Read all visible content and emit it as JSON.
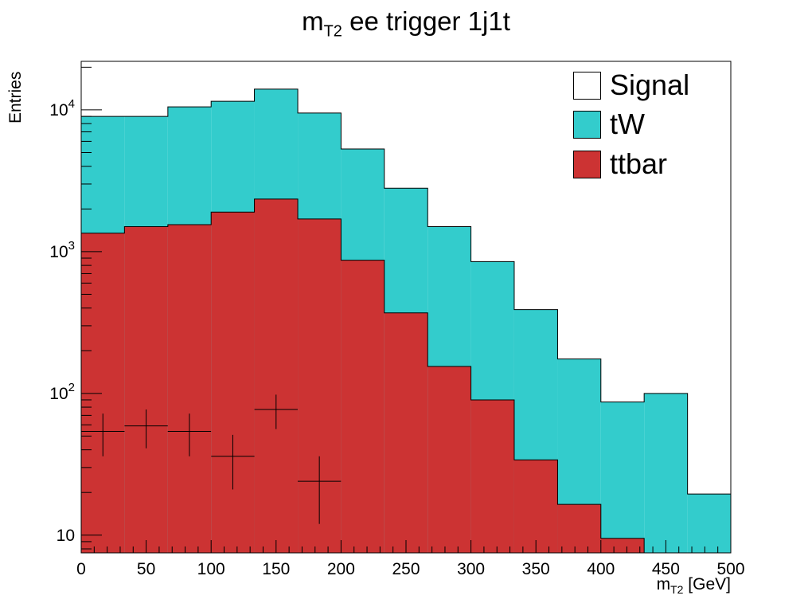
{
  "title": {
    "main": "m",
    "sub": "T2",
    "rest": " ee trigger 1j1t"
  },
  "ylabel": "Entries",
  "xlabel": {
    "main": "m",
    "sub": "T2",
    "rest": " [GeV]"
  },
  "colors": {
    "tW": "#33cccc",
    "ttbar": "#cc3333",
    "signal": "#ffffff"
  },
  "legend": [
    {
      "label": "Signal",
      "color": "#ffffff"
    },
    {
      "label": "tW",
      "color": "#33cccc"
    },
    {
      "label": "ttbar",
      "color": "#cc3333"
    }
  ],
  "chart_data": {
    "type": "bar",
    "stacked": true,
    "yscale": "log",
    "xlim": [
      0,
      500
    ],
    "ylim": [
      7.5,
      22000
    ],
    "bin_edges": [
      0,
      33.3,
      66.7,
      100,
      133.3,
      166.7,
      200,
      233.3,
      266.7,
      300,
      333.3,
      366.7,
      400,
      433.3,
      466.7,
      500
    ],
    "series": [
      {
        "name": "ttbar",
        "values": [
          1350,
          1500,
          1550,
          1900,
          2350,
          1700,
          870,
          370,
          155,
          90,
          34,
          16.5,
          9.5,
          7.5,
          7.5
        ]
      },
      {
        "name": "tW",
        "values": [
          7650,
          7500,
          8950,
          9600,
          11650,
          7800,
          4430,
          2430,
          1345,
          760,
          356,
          158.5,
          77.5,
          92.5,
          12
        ]
      }
    ],
    "signal_points": [
      {
        "x": 16.7,
        "y": 54,
        "ylow": 36,
        "yhigh": 72
      },
      {
        "x": 50,
        "y": 59,
        "ylow": 41,
        "yhigh": 77
      },
      {
        "x": 83.3,
        "y": 54,
        "ylow": 36,
        "yhigh": 72
      },
      {
        "x": 116.7,
        "y": 36,
        "ylow": 21,
        "yhigh": 51
      },
      {
        "x": 150,
        "y": 77,
        "ylow": 56,
        "yhigh": 98
      },
      {
        "x": 183.3,
        "y": 24,
        "ylow": 12,
        "yhigh": 36
      }
    ],
    "x_ticks": [
      "0",
      "50",
      "100",
      "150",
      "200",
      "250",
      "300",
      "350",
      "400",
      "450",
      "500"
    ],
    "x_tick_values": [
      0,
      50,
      100,
      150,
      200,
      250,
      300,
      350,
      400,
      450,
      500
    ],
    "y_ticks": [
      {
        "value": 10,
        "base": "10",
        "exp": ""
      },
      {
        "value": 100,
        "base": "10",
        "exp": "2"
      },
      {
        "value": 1000,
        "base": "10",
        "exp": "3"
      },
      {
        "value": 10000,
        "base": "10",
        "exp": "4"
      }
    ]
  }
}
